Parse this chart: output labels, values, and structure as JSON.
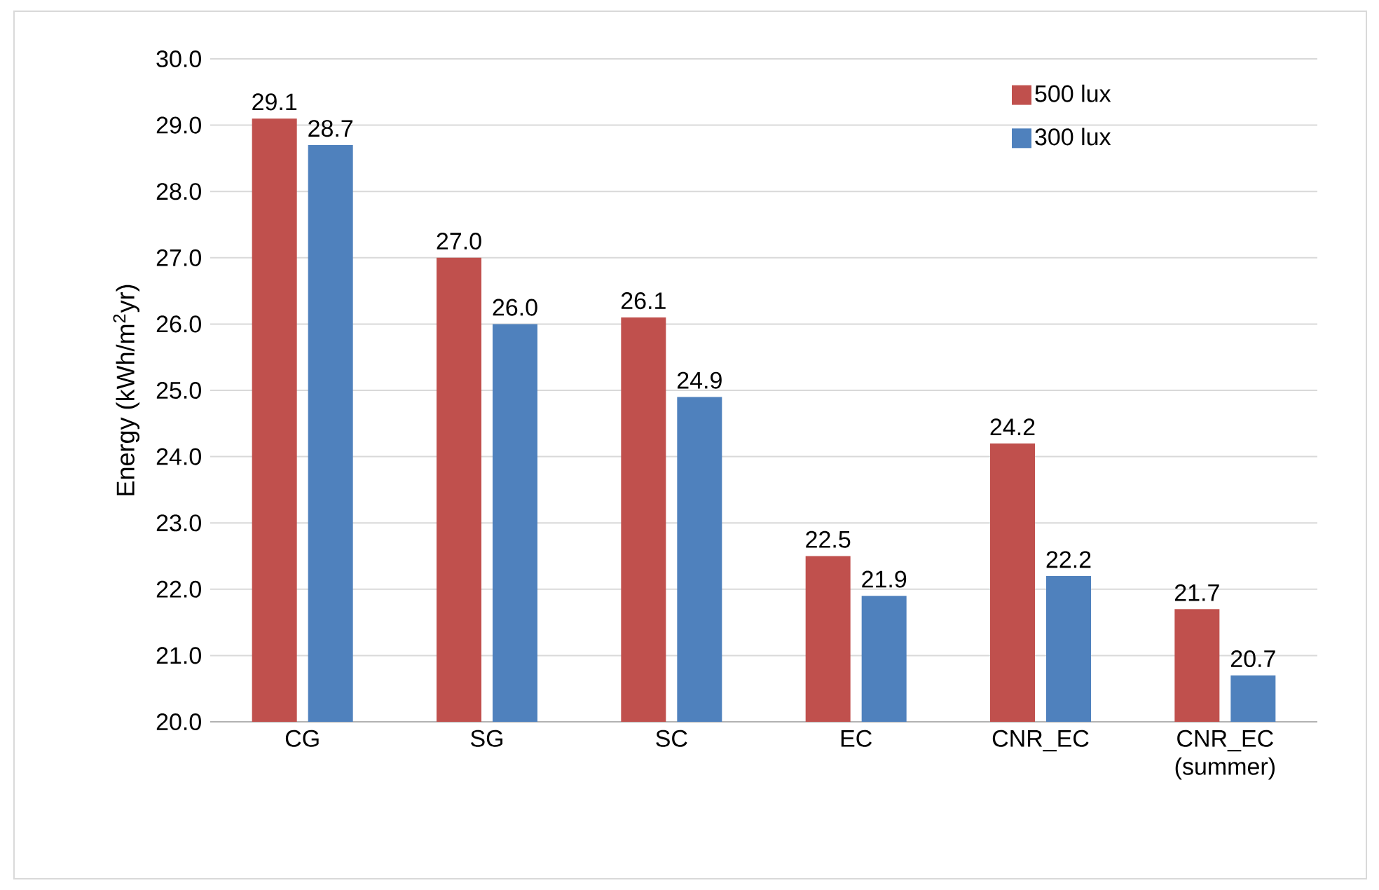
{
  "chart_data": {
    "type": "bar",
    "ylabel": "Energy (kWh/m$^{2}$yr)",
    "categories": [
      "CG",
      "SG",
      "SC",
      "EC",
      "CNR_EC",
      "CNR_EC (summer)"
    ],
    "series": [
      {
        "name": "500 lux",
        "color": "#c0504d",
        "values": [
          29.1,
          27.0,
          26.1,
          22.5,
          24.2,
          21.7
        ],
        "value_labels": [
          "29.1",
          "27.0",
          "26.1",
          "22.5",
          "24.2",
          "21.7"
        ]
      },
      {
        "name": "300 lux",
        "color": "#4f81bd",
        "values": [
          28.7,
          26.0,
          24.9,
          21.9,
          22.2,
          20.7
        ],
        "value_labels": [
          "28.7",
          "26.0",
          "24.9",
          "21.9",
          "22.2",
          "20.7"
        ]
      }
    ],
    "ylim": [
      20,
      30
    ],
    "yticks": [
      {
        "value": 20,
        "label": "20.0"
      },
      {
        "value": 21,
        "label": "21.0"
      },
      {
        "value": 22,
        "label": "22.0"
      },
      {
        "value": 23,
        "label": "23.0"
      },
      {
        "value": 24,
        "label": "24.0"
      },
      {
        "value": 25,
        "label": "25.0"
      },
      {
        "value": 26,
        "label": "26.0"
      },
      {
        "value": 27,
        "label": "27.0"
      },
      {
        "value": 28,
        "label": "28.0"
      },
      {
        "value": 29,
        "label": "29.0"
      },
      {
        "value": 30,
        "label": "30.0"
      }
    ],
    "grid": "y",
    "legend": "top right"
  }
}
